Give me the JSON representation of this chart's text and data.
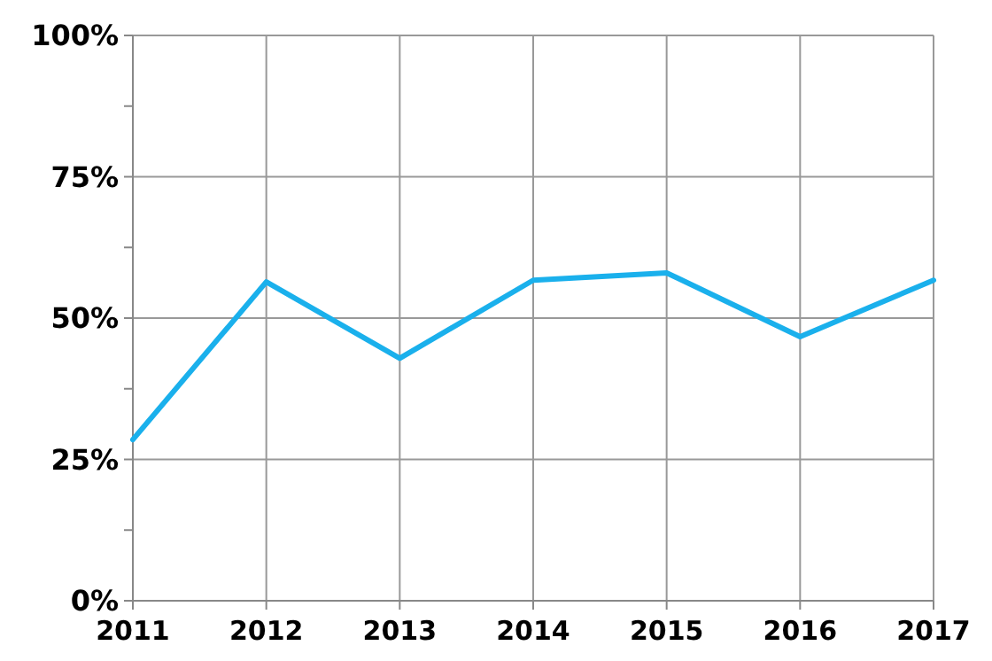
{
  "chart_data": {
    "type": "line",
    "x": [
      2011,
      2012,
      2013,
      2014,
      2015,
      2016,
      2017
    ],
    "series": [
      {
        "color": "#1ab0ec",
        "values": [
          28.5,
          56.4,
          42.9,
          56.7,
          58,
          46.7,
          56.7
        ]
      }
    ],
    "xlim": [
      2011,
      2017
    ],
    "xticks": [
      2011,
      2012,
      2013,
      2014,
      2015,
      2016,
      2017
    ],
    "ylim": [
      0,
      100
    ],
    "yticks": [
      {
        "value": 0,
        "label": "0%"
      },
      {
        "value": 12.5,
        "label": null
      },
      {
        "value": 25,
        "label": "25%"
      },
      {
        "value": 37.5,
        "label": null
      },
      {
        "value": 50,
        "label": "50%"
      },
      {
        "value": 62.5,
        "label": null
      },
      {
        "value": 75,
        "label": "75%"
      },
      {
        "value": 87.5,
        "label": null
      },
      {
        "value": 100,
        "label": "100%"
      }
    ],
    "grid": true,
    "marker": "none",
    "line_style": "solid"
  }
}
